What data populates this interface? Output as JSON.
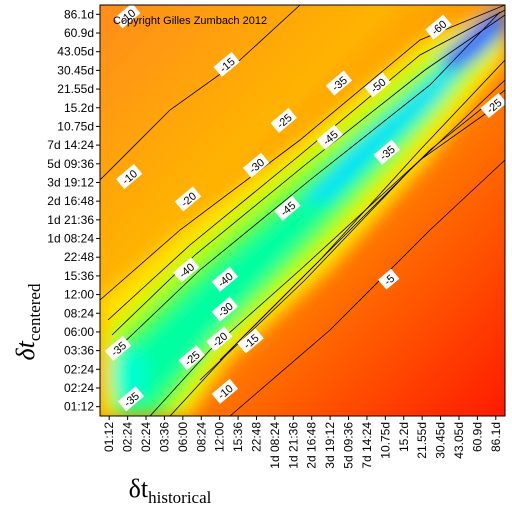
{
  "chart_data": {
    "type": "heatmap",
    "title": "",
    "annotation": "Copyright Gilles Zumbach 2012",
    "xlabel": {
      "symbol": "δt",
      "subscript": "historical"
    },
    "ylabel": {
      "symbol": "δt",
      "subscript": "centered"
    },
    "x_ticks": [
      "01:12",
      "02:24",
      "02:24",
      "03:36",
      "06:00",
      "08:24",
      "12:00",
      "15:36",
      "22:48",
      "1d 08:24",
      "1d 21:36",
      "2d 16:48",
      "3d 19:12",
      "5d 09:36",
      "7d 14:24",
      "10.75d",
      "15.2d",
      "21.55d",
      "30.45d",
      "43.05d",
      "60.9d",
      "86.1d"
    ],
    "y_ticks": [
      "01:12",
      "02:24",
      "02:24",
      "03:36",
      "06:00",
      "08:24",
      "12:00",
      "15:36",
      "22:48",
      "1d 08:24",
      "1d 21:36",
      "2d 16:48",
      "3d 19:12",
      "5d 09:36",
      "7d 14:24",
      "10.75d",
      "15.2d",
      "21.55d",
      "30.45d",
      "43.05d",
      "60.9d",
      "86.1d"
    ],
    "colorscale": "red (≈0) → orange → yellow → green → cyan → blue (≈-60)",
    "contour_levels": [
      -5,
      -10,
      -15,
      -20,
      -25,
      -30,
      -35,
      -40,
      -45,
      -50,
      -55,
      -60
    ],
    "contour_labels": [
      {
        "text": "-10",
        "x": 1.0,
        "y": 20.9
      },
      {
        "text": "-15",
        "x": 6.4,
        "y": 18.3
      },
      {
        "text": "-35",
        "x": 12.5,
        "y": 17.3
      },
      {
        "text": "-50",
        "x": 14.6,
        "y": 17.2
      },
      {
        "text": "-60",
        "x": 17.9,
        "y": 20.3
      },
      {
        "text": "-25",
        "x": 9.5,
        "y": 15.3
      },
      {
        "text": "-25",
        "x": 20.9,
        "y": 16.1
      },
      {
        "text": "-45",
        "x": 12.0,
        "y": 14.4
      },
      {
        "text": "-35",
        "x": 15.1,
        "y": 13.6
      },
      {
        "text": "-30",
        "x": 8.0,
        "y": 12.9
      },
      {
        "text": "-10",
        "x": 1.1,
        "y": 12.3
      },
      {
        "text": "-20",
        "x": 4.3,
        "y": 11.1
      },
      {
        "text": "-45",
        "x": 9.7,
        "y": 10.6
      },
      {
        "text": "-40",
        "x": 4.2,
        "y": 7.3
      },
      {
        "text": "-40",
        "x": 6.3,
        "y": 6.8
      },
      {
        "text": "-5",
        "x": 15.2,
        "y": 6.8
      },
      {
        "text": "-30",
        "x": 6.3,
        "y": 5.2
      },
      {
        "text": "-35",
        "x": 0.5,
        "y": 3.1
      },
      {
        "text": "-20",
        "x": 6.0,
        "y": 3.6
      },
      {
        "text": "-15",
        "x": 7.7,
        "y": 3.5
      },
      {
        "text": "-25",
        "x": 4.5,
        "y": 2.6
      },
      {
        "text": "-10",
        "x": 6.3,
        "y": 0.8
      },
      {
        "text": "-35",
        "x": 1.2,
        "y": 0.4
      }
    ]
  }
}
